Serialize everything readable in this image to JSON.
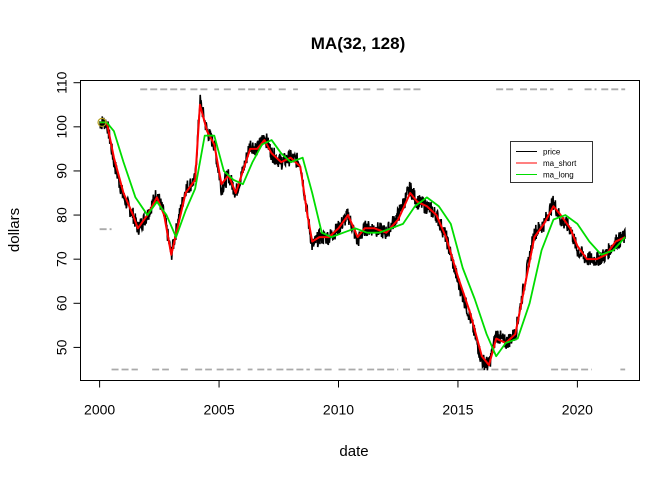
{
  "chart_data": {
    "type": "line",
    "title": "MA(32, 128)",
    "xlabel": "date",
    "ylabel": "dollars",
    "xlim": [
      1999.2,
      2022.6
    ],
    "ylim": [
      42.5,
      110.5
    ],
    "x_ticks": [
      2000,
      2005,
      2010,
      2015,
      2020
    ],
    "y_ticks": [
      50,
      60,
      70,
      80,
      90,
      100,
      110
    ],
    "grid": false,
    "legend_position": "right",
    "colors": {
      "price": "#000000",
      "ma_short": "#ff0000",
      "ma_long": "#00dd00",
      "signal": "#aaaaaa"
    },
    "legend": [
      {
        "label": "price",
        "color": "#000000"
      },
      {
        "label": "ma_short",
        "color": "#ff0000"
      },
      {
        "label": "ma_long",
        "color": "#00dd00"
      }
    ],
    "series": [
      {
        "name": "price",
        "x": [
          2000.0,
          2000.3,
          2000.6,
          2001.0,
          2001.4,
          2001.6,
          2002.0,
          2002.4,
          2002.7,
          2003.0,
          2003.3,
          2003.6,
          2004.0,
          2004.2,
          2004.5,
          2004.8,
          2005.1,
          2005.4,
          2005.7,
          2006.0,
          2006.3,
          2006.6,
          2006.9,
          2007.2,
          2007.6,
          2008.0,
          2008.4,
          2008.7,
          2008.9,
          2009.2,
          2009.6,
          2010.0,
          2010.4,
          2010.8,
          2011.1,
          2011.5,
          2012.0,
          2012.5,
          2013.0,
          2013.3,
          2013.7,
          2014.1,
          2014.5,
          2015.0,
          2015.5,
          2016.0,
          2016.3,
          2016.6,
          2017.0,
          2017.4,
          2017.8,
          2018.2,
          2018.6,
          2019.0,
          2019.3,
          2019.7,
          2020.0,
          2020.4,
          2020.8,
          2021.2,
          2021.6,
          2022.0
        ],
        "y": [
          101,
          101,
          92,
          84,
          80,
          77,
          80,
          85,
          80,
          71,
          79,
          86,
          88,
          106,
          99,
          96,
          86,
          89,
          85,
          90,
          96,
          95,
          98,
          94,
          92,
          93,
          92,
          80,
          73,
          75,
          75,
          77,
          80,
          74,
          77,
          77,
          76,
          80,
          86,
          83,
          82,
          80,
          75,
          65,
          57,
          47,
          46,
          53,
          51,
          53,
          65,
          76,
          78,
          83,
          79,
          77,
          72,
          70,
          70,
          71,
          74,
          75
        ]
      },
      {
        "name": "ma_short",
        "x": [
          2000.0,
          2000.3,
          2000.6,
          2001.0,
          2001.4,
          2001.6,
          2002.0,
          2002.4,
          2002.7,
          2003.0,
          2003.3,
          2003.6,
          2004.0,
          2004.2,
          2004.5,
          2004.8,
          2005.1,
          2005.4,
          2005.7,
          2006.0,
          2006.3,
          2006.6,
          2006.9,
          2007.2,
          2007.6,
          2008.0,
          2008.4,
          2008.7,
          2008.9,
          2009.2,
          2009.6,
          2010.0,
          2010.4,
          2010.8,
          2011.1,
          2011.5,
          2012.0,
          2012.5,
          2013.0,
          2013.3,
          2013.7,
          2014.1,
          2014.5,
          2015.0,
          2015.5,
          2016.0,
          2016.3,
          2016.6,
          2017.0,
          2017.4,
          2017.8,
          2018.2,
          2018.6,
          2019.0,
          2019.3,
          2019.7,
          2020.0,
          2020.4,
          2020.8,
          2021.2,
          2021.6,
          2022.0
        ],
        "y": [
          101,
          101,
          93,
          85,
          80,
          77,
          80,
          84,
          80,
          71,
          78,
          85,
          88,
          105,
          99,
          96,
          87,
          89,
          85,
          90,
          95,
          95,
          97,
          94,
          92,
          93,
          91,
          80,
          74,
          75,
          75,
          77,
          80,
          75,
          77,
          77,
          76,
          79,
          85,
          83,
          82,
          80,
          75,
          66,
          58,
          48,
          46,
          52,
          51,
          53,
          64,
          75,
          78,
          82,
          80,
          77,
          73,
          70,
          70,
          71,
          74,
          75
        ]
      },
      {
        "name": "ma_long",
        "x": [
          2000.0,
          2000.3,
          2000.6,
          2001.0,
          2001.5,
          2002.0,
          2002.4,
          2002.8,
          2003.2,
          2003.6,
          2004.0,
          2004.4,
          2004.8,
          2005.2,
          2005.6,
          2006.0,
          2006.4,
          2006.8,
          2007.2,
          2007.6,
          2008.0,
          2008.5,
          2008.9,
          2009.3,
          2009.7,
          2010.2,
          2010.7,
          2011.2,
          2011.7,
          2012.2,
          2012.7,
          2013.2,
          2013.7,
          2014.2,
          2014.7,
          2015.2,
          2015.7,
          2016.2,
          2016.6,
          2017.0,
          2017.5,
          2018.0,
          2018.5,
          2019.0,
          2019.5,
          2020.0,
          2020.5,
          2021.0,
          2021.5,
          2022.0
        ],
        "y": [
          101,
          101,
          99,
          92,
          84,
          80,
          83,
          80,
          75,
          81,
          86,
          98,
          98,
          90,
          88,
          87,
          92,
          96,
          97,
          94,
          92,
          93,
          85,
          76,
          75,
          76,
          77,
          76,
          76,
          77,
          78,
          82,
          84,
          82,
          78,
          68,
          61,
          53,
          48,
          51,
          52,
          60,
          72,
          79,
          80,
          78,
          74,
          71,
          72,
          75
        ]
      }
    ],
    "signal_lines": [
      {
        "name": "upper_signal",
        "y": 108.5,
        "x_ranges": [
          [
            2001.7,
            2003.6
          ],
          [
            2003.8,
            2004.6
          ],
          [
            2004.8,
            2005.0
          ],
          [
            2005.2,
            2005.5
          ],
          [
            2005.8,
            2007.2
          ],
          [
            2007.5,
            2007.9
          ],
          [
            2008.1,
            2008.3
          ],
          [
            2009.2,
            2010.0
          ],
          [
            2010.2,
            2011.4
          ],
          [
            2011.6,
            2012.0
          ],
          [
            2012.3,
            2013.5
          ],
          [
            2016.6,
            2017.4
          ],
          [
            2017.6,
            2019.0
          ],
          [
            2019.6,
            2019.8
          ],
          [
            2020.3,
            2020.8
          ],
          [
            2021.0,
            2022.0
          ]
        ]
      },
      {
        "name": "lower_signal",
        "y": 45.0,
        "x_ranges": [
          [
            2000.5,
            2001.6
          ],
          [
            2002.2,
            2002.9
          ],
          [
            2003.4,
            2003.8
          ],
          [
            2004.0,
            2004.7
          ],
          [
            2004.9,
            2005.9
          ],
          [
            2006.2,
            2006.4
          ],
          [
            2006.6,
            2007.2
          ],
          [
            2007.4,
            2008.8
          ],
          [
            2009.0,
            2009.8
          ],
          [
            2010.0,
            2011.0
          ],
          [
            2011.2,
            2012.5
          ],
          [
            2012.7,
            2013.1
          ],
          [
            2013.3,
            2016.2
          ],
          [
            2016.4,
            2017.5
          ],
          [
            2018.9,
            2020.6
          ],
          [
            2021.8,
            2022.0
          ]
        ]
      },
      {
        "name": "mid_signal",
        "y": 76.8,
        "x_ranges": [
          [
            2000.0,
            2000.5
          ]
        ]
      }
    ]
  }
}
